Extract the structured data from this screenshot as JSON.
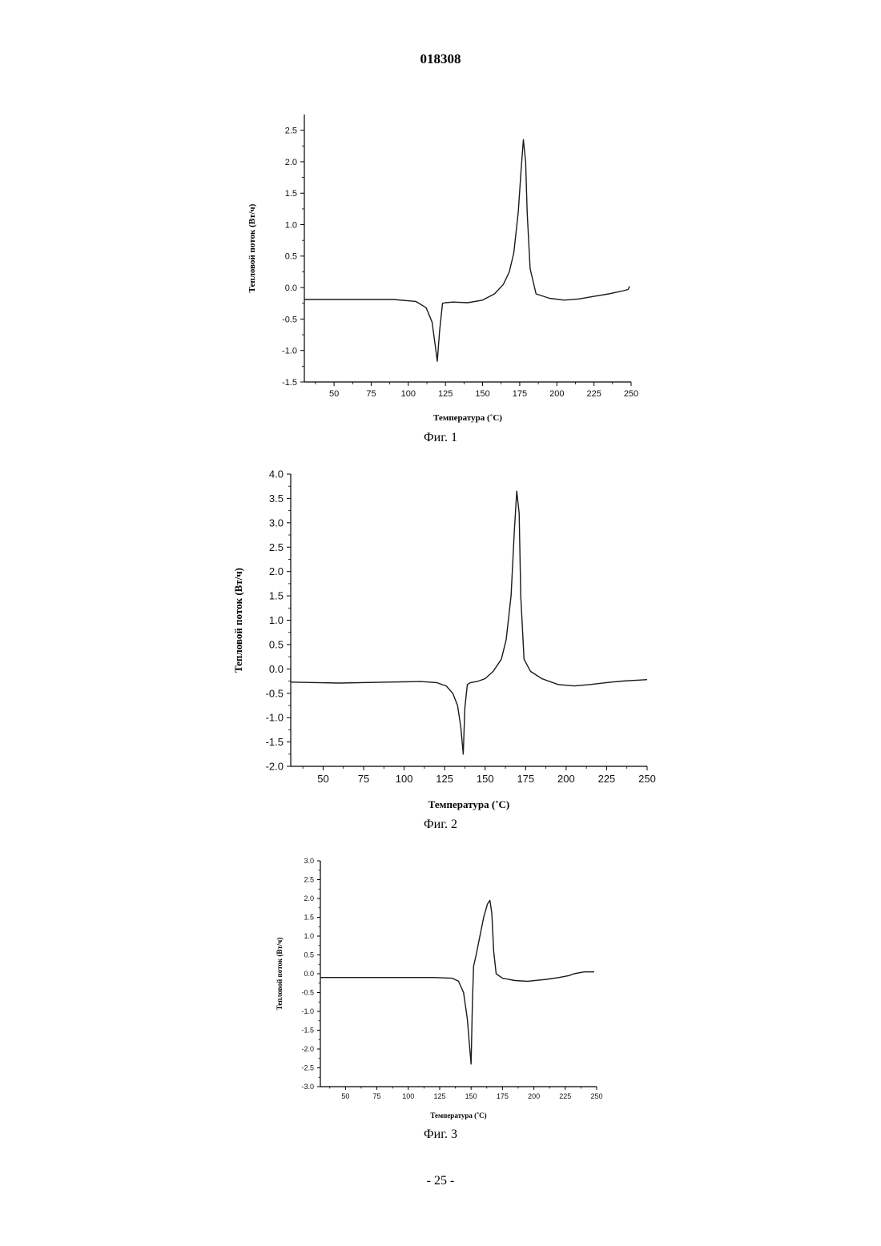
{
  "page": {
    "doc_number": "018308",
    "footer": "- 25 -"
  },
  "chart_data": [
    {
      "type": "line",
      "caption": "Фиг. 1",
      "xlabel": "Температура (˚C)",
      "ylabel": "Тепловой поток (Вт/ч)",
      "xlim": [
        30,
        250
      ],
      "ylim": [
        -1.5,
        2.75
      ],
      "xticks": [
        50,
        75,
        100,
        125,
        150,
        175,
        200,
        225,
        250
      ],
      "yticks": [
        -1.5,
        -1.0,
        -0.5,
        0.0,
        0.5,
        1.0,
        1.5,
        2.0,
        2.5
      ],
      "ytick_labels": [
        "-1.5",
        "-1.0",
        "-0.5",
        "0.0",
        "0.5",
        "1.0",
        "1.5",
        "2.0",
        "2.5"
      ],
      "series": [
        {
          "x": [
            30,
            60,
            90,
            105,
            112,
            116,
            118,
            119.5,
            121,
            123,
            125,
            130,
            140,
            150,
            158,
            164,
            168,
            171,
            174,
            176,
            177.5,
            179,
            180,
            182,
            186,
            195,
            205,
            215,
            225,
            235,
            245,
            248,
            249
          ],
          "y": [
            -0.19,
            -0.19,
            -0.19,
            -0.22,
            -0.32,
            -0.55,
            -0.9,
            -1.17,
            -0.7,
            -0.25,
            -0.24,
            -0.23,
            -0.24,
            -0.2,
            -0.1,
            0.05,
            0.25,
            0.55,
            1.2,
            1.9,
            2.35,
            2.0,
            1.2,
            0.3,
            -0.1,
            -0.17,
            -0.2,
            -0.18,
            -0.14,
            -0.1,
            -0.05,
            -0.03,
            0.02
          ]
        }
      ]
    },
    {
      "type": "line",
      "caption": "Фиг. 2",
      "xlabel": "Температура (˚C)",
      "ylabel": "Тепловой поток (Вт/ч)",
      "xlim": [
        30,
        250
      ],
      "ylim": [
        -2.0,
        4.0
      ],
      "xticks": [
        50,
        75,
        100,
        125,
        150,
        175,
        200,
        225,
        250
      ],
      "yticks": [
        -2.0,
        -1.5,
        -1.0,
        -0.5,
        0.0,
        0.5,
        1.0,
        1.5,
        2.0,
        2.5,
        3.0,
        3.5,
        4.0
      ],
      "ytick_labels": [
        "-2.0",
        "-1.5",
        "-1.0",
        "-0.5",
        "0.0",
        "0.5",
        "1.0",
        "1.5",
        "2.0",
        "2.5",
        "3.0",
        "3.5",
        "4.0"
      ],
      "series": [
        {
          "x": [
            30,
            60,
            90,
            110,
            120,
            126,
            130,
            133,
            135,
            136.5,
            137.5,
            139,
            141,
            145,
            150,
            155,
            160,
            163,
            166,
            168,
            169.5,
            171,
            172,
            174,
            178,
            185,
            195,
            205,
            215,
            225,
            235,
            245,
            250
          ],
          "y": [
            -0.27,
            -0.29,
            -0.27,
            -0.26,
            -0.28,
            -0.35,
            -0.5,
            -0.75,
            -1.2,
            -1.75,
            -0.8,
            -0.32,
            -0.28,
            -0.26,
            -0.2,
            -0.05,
            0.2,
            0.6,
            1.5,
            2.8,
            3.65,
            3.2,
            1.5,
            0.2,
            -0.05,
            -0.2,
            -0.32,
            -0.35,
            -0.32,
            -0.28,
            -0.25,
            -0.23,
            -0.22
          ]
        }
      ]
    },
    {
      "type": "line",
      "caption": "Фиг. 3",
      "xlabel": "Температура (˚C)",
      "ylabel": "Тепловой поток (Вт/ч)",
      "xlim": [
        30,
        250
      ],
      "ylim": [
        -3.0,
        3.0
      ],
      "xticks": [
        50,
        75,
        100,
        125,
        150,
        175,
        200,
        225,
        250
      ],
      "xtick_labels": [
        "50",
        "75",
        "100",
        "125",
        "150",
        "175",
        "200",
        "225",
        "250"
      ],
      "yticks": [
        -3.0,
        -2.5,
        -2.0,
        -1.5,
        -1.0,
        -0.5,
        0.0,
        0.5,
        1.0,
        1.5,
        2.0,
        2.5,
        3.0
      ],
      "ytick_labels": [
        "-3.0",
        "-2.5",
        "-2.0",
        "-1.5",
        "-1.0",
        "-0.5",
        "0.0",
        "0.5",
        "1.0",
        "1.5",
        "2.0",
        "2.5",
        "3.0"
      ],
      "series": [
        {
          "x": [
            30,
            60,
            90,
            120,
            135,
            140,
            144,
            147,
            149,
            150,
            151,
            152,
            154,
            157,
            160,
            163,
            165,
            166.5,
            168,
            170,
            175,
            185,
            195,
            210,
            220,
            228,
            232,
            240,
            248
          ],
          "y": [
            -0.1,
            -0.1,
            -0.1,
            -0.1,
            -0.12,
            -0.2,
            -0.5,
            -1.2,
            -2.0,
            -2.4,
            -0.8,
            0.2,
            0.5,
            1.0,
            1.5,
            1.85,
            1.95,
            1.6,
            0.6,
            0.0,
            -0.12,
            -0.18,
            -0.2,
            -0.15,
            -0.1,
            -0.05,
            0.0,
            0.05,
            0.05
          ]
        }
      ]
    }
  ]
}
